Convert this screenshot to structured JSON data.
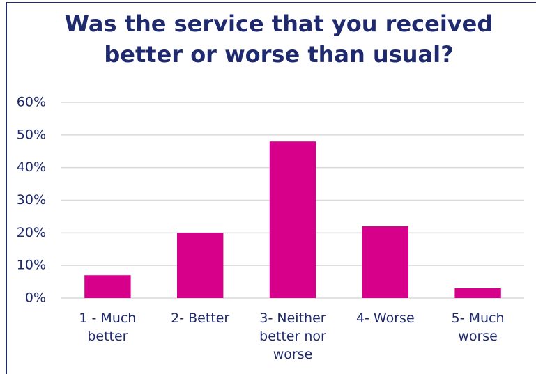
{
  "chart_data": {
    "type": "bar",
    "title": "Was the service that you received better or worse than usual?",
    "categories": [
      "1 - Much better",
      "2- Better",
      "3- Neither better nor worse",
      "4- Worse",
      "5- Much worse"
    ],
    "values": [
      7,
      20,
      48,
      22,
      3
    ],
    "color": "#d6008a",
    "ylim": [
      0,
      60
    ],
    "yticks": [
      {
        "value": 0,
        "label": "0%"
      },
      {
        "value": 10,
        "label": "10%"
      },
      {
        "value": 20,
        "label": "20%"
      },
      {
        "value": 30,
        "label": "30%"
      },
      {
        "value": 40,
        "label": "40%"
      },
      {
        "value": 50,
        "label": "50%"
      },
      {
        "value": 60,
        "label": "60%"
      }
    ],
    "grid": true
  }
}
